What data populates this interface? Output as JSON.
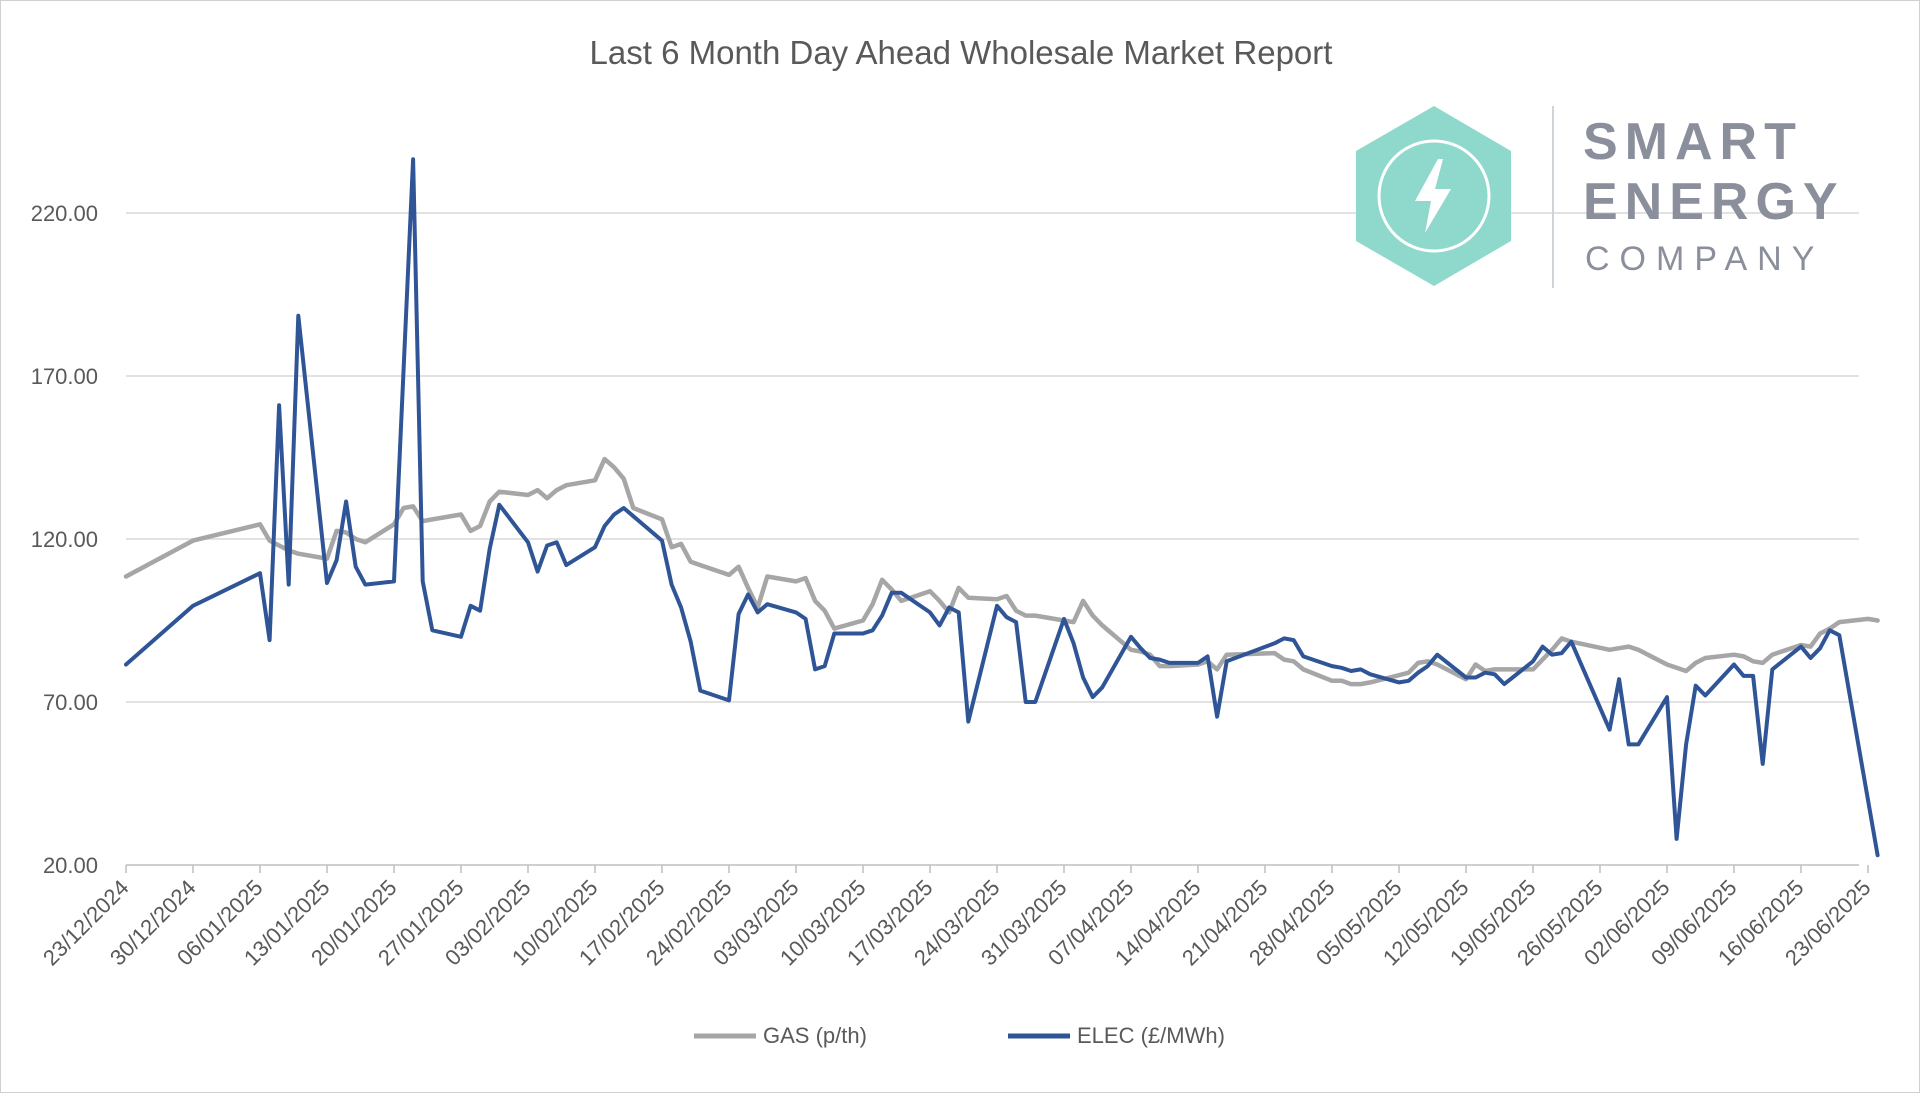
{
  "logo": {
    "line1": "SMART",
    "line2": "ENERGY",
    "line3": "COMPANY",
    "hex_color": "#8fd9cc",
    "text_color": "#8a8f9b"
  },
  "chart_data": {
    "type": "line",
    "title": "Last 6 Month Day Ahead Wholesale Market Report",
    "xlabel": "",
    "ylabel": "",
    "x_range": [
      "2024-12-23",
      "2025-06-24"
    ],
    "ylim": [
      20,
      245
    ],
    "y_ticks": [
      "220.00",
      "170.00",
      "120.00",
      "70.00",
      "20.00"
    ],
    "x_ticks": [
      "23/12/2024",
      "30/12/2024",
      "06/01/2025",
      "13/01/2025",
      "20/01/2025",
      "27/01/2025",
      "03/02/2025",
      "10/02/2025",
      "17/02/2025",
      "24/02/2025",
      "03/03/2025",
      "10/03/2025",
      "17/03/2025",
      "24/03/2025",
      "31/03/2025",
      "07/04/2025",
      "14/04/2025",
      "21/04/2025",
      "28/04/2025",
      "05/05/2025",
      "12/05/2025",
      "19/05/2025",
      "26/05/2025",
      "02/06/2025",
      "09/06/2025",
      "16/06/2025",
      "23/06/2025"
    ],
    "grid": true,
    "legend_position": "bottom",
    "series": [
      {
        "name": "GAS (p/th)",
        "color": "#a6a6a6",
        "points": [
          [
            "2024-12-23",
            108.5
          ],
          [
            "2024-12-30",
            119.5
          ],
          [
            "2025-01-06",
            124.5
          ],
          [
            "2025-01-07",
            119.5
          ],
          [
            "2025-01-08",
            118
          ],
          [
            "2025-01-09",
            116.5
          ],
          [
            "2025-01-10",
            115.5
          ],
          [
            "2025-01-13",
            114
          ],
          [
            "2025-01-14",
            122.5
          ],
          [
            "2025-01-15",
            122
          ],
          [
            "2025-01-16",
            120
          ],
          [
            "2025-01-17",
            119
          ],
          [
            "2025-01-20",
            124.5
          ],
          [
            "2025-01-21",
            129.5
          ],
          [
            "2025-01-22",
            130
          ],
          [
            "2025-01-23",
            125.5
          ],
          [
            "2025-01-24",
            126
          ],
          [
            "2025-01-27",
            127.5
          ],
          [
            "2025-01-28",
            122.5
          ],
          [
            "2025-01-29",
            124
          ],
          [
            "2025-01-30",
            131.5
          ],
          [
            "2025-01-31",
            134.5
          ],
          [
            "2025-02-03",
            133.5
          ],
          [
            "2025-02-04",
            135
          ],
          [
            "2025-02-05",
            132.5
          ],
          [
            "2025-02-06",
            135
          ],
          [
            "2025-02-07",
            136.5
          ],
          [
            "2025-02-10",
            138
          ],
          [
            "2025-02-11",
            144.5
          ],
          [
            "2025-02-12",
            142
          ],
          [
            "2025-02-13",
            138.5
          ],
          [
            "2025-02-14",
            129.5
          ],
          [
            "2025-02-17",
            126
          ],
          [
            "2025-02-18",
            117.5
          ],
          [
            "2025-02-19",
            118.5
          ],
          [
            "2025-02-20",
            113
          ],
          [
            "2025-02-21",
            112
          ],
          [
            "2025-02-24",
            109
          ],
          [
            "2025-02-25",
            111.5
          ],
          [
            "2025-02-26",
            105
          ],
          [
            "2025-02-27",
            99
          ],
          [
            "2025-02-28",
            108.5
          ],
          [
            "2025-03-03",
            107
          ],
          [
            "2025-03-04",
            108
          ],
          [
            "2025-03-05",
            101
          ],
          [
            "2025-03-06",
            98
          ],
          [
            "2025-03-07",
            92.5
          ],
          [
            "2025-03-10",
            95
          ],
          [
            "2025-03-11",
            100
          ],
          [
            "2025-03-12",
            107.5
          ],
          [
            "2025-03-13",
            104.5
          ],
          [
            "2025-03-14",
            101
          ],
          [
            "2025-03-17",
            104
          ],
          [
            "2025-03-18",
            101
          ],
          [
            "2025-03-19",
            97.5
          ],
          [
            "2025-03-20",
            105
          ],
          [
            "2025-03-21",
            102
          ],
          [
            "2025-03-24",
            101.5
          ],
          [
            "2025-03-25",
            102.5
          ],
          [
            "2025-03-26",
            98
          ],
          [
            "2025-03-27",
            96.5
          ],
          [
            "2025-03-28",
            96.5
          ],
          [
            "2025-03-31",
            95
          ],
          [
            "2025-04-01",
            94.5
          ],
          [
            "2025-04-02",
            101
          ],
          [
            "2025-04-03",
            96.5
          ],
          [
            "2025-04-04",
            93.5
          ],
          [
            "2025-04-07",
            86
          ],
          [
            "2025-04-08",
            85.5
          ],
          [
            "2025-04-09",
            84.5
          ],
          [
            "2025-04-10",
            81
          ],
          [
            "2025-04-11",
            81
          ],
          [
            "2025-04-14",
            81.5
          ],
          [
            "2025-04-15",
            82.5
          ],
          [
            "2025-04-16",
            80
          ],
          [
            "2025-04-17",
            84.5
          ],
          [
            "2025-04-22",
            85
          ],
          [
            "2025-04-23",
            83
          ],
          [
            "2025-04-24",
            82.5
          ],
          [
            "2025-04-25",
            80
          ],
          [
            "2025-04-28",
            76.5
          ],
          [
            "2025-04-29",
            76.5
          ],
          [
            "2025-04-30",
            75.5
          ],
          [
            "2025-05-01",
            75.5
          ],
          [
            "2025-05-02",
            76
          ],
          [
            "2025-05-06",
            79
          ],
          [
            "2025-05-07",
            82
          ],
          [
            "2025-05-08",
            82.5
          ],
          [
            "2025-05-09",
            81.5
          ],
          [
            "2025-05-12",
            77
          ],
          [
            "2025-05-13",
            81.5
          ],
          [
            "2025-05-14",
            79.5
          ],
          [
            "2025-05-15",
            80
          ],
          [
            "2025-05-16",
            80
          ],
          [
            "2025-05-19",
            80
          ],
          [
            "2025-05-20",
            83
          ],
          [
            "2025-05-21",
            86
          ],
          [
            "2025-05-22",
            89.5
          ],
          [
            "2025-05-23",
            88.5
          ],
          [
            "2025-05-27",
            86
          ],
          [
            "2025-05-28",
            86.5
          ],
          [
            "2025-05-29",
            87
          ],
          [
            "2025-05-30",
            86
          ],
          [
            "2025-06-02",
            81.5
          ],
          [
            "2025-06-03",
            80.5
          ],
          [
            "2025-06-04",
            79.5
          ],
          [
            "2025-06-05",
            82
          ],
          [
            "2025-06-06",
            83.5
          ],
          [
            "2025-06-09",
            84.5
          ],
          [
            "2025-06-10",
            84
          ],
          [
            "2025-06-11",
            82.5
          ],
          [
            "2025-06-12",
            82
          ],
          [
            "2025-06-13",
            84.5
          ],
          [
            "2025-06-16",
            87.5
          ],
          [
            "2025-06-17",
            87
          ],
          [
            "2025-06-18",
            91
          ],
          [
            "2025-06-19",
            92.5
          ],
          [
            "2025-06-20",
            94.5
          ],
          [
            "2025-06-23",
            95.5
          ],
          [
            "2025-06-24",
            95
          ]
        ]
      },
      {
        "name": "ELEC (£/MWh)",
        "color": "#2f5597",
        "points": [
          [
            "2024-12-23",
            81.5
          ],
          [
            "2024-12-30",
            99.5
          ],
          [
            "2025-01-06",
            109.5
          ],
          [
            "2025-01-07",
            89
          ],
          [
            "2025-01-08",
            161
          ],
          [
            "2025-01-09",
            106
          ],
          [
            "2025-01-10",
            188.5
          ],
          [
            "2025-01-13",
            106.5
          ],
          [
            "2025-01-14",
            113.5
          ],
          [
            "2025-01-15",
            131.5
          ],
          [
            "2025-01-16",
            111.5
          ],
          [
            "2025-01-17",
            106
          ],
          [
            "2025-01-20",
            107
          ],
          [
            "2025-01-22",
            236.5
          ],
          [
            "2025-01-23",
            107
          ],
          [
            "2025-01-24",
            92
          ],
          [
            "2025-01-27",
            90
          ],
          [
            "2025-01-28",
            99.5
          ],
          [
            "2025-01-29",
            98
          ],
          [
            "2025-01-30",
            117
          ],
          [
            "2025-01-31",
            130.5
          ],
          [
            "2025-02-03",
            119
          ],
          [
            "2025-02-04",
            110
          ],
          [
            "2025-02-05",
            118
          ],
          [
            "2025-02-06",
            119
          ],
          [
            "2025-02-07",
            112
          ],
          [
            "2025-02-10",
            117.5
          ],
          [
            "2025-02-11",
            124
          ],
          [
            "2025-02-12",
            127.5
          ],
          [
            "2025-02-13",
            129.5
          ],
          [
            "2025-02-14",
            127
          ],
          [
            "2025-02-17",
            119.5
          ],
          [
            "2025-02-18",
            106
          ],
          [
            "2025-02-19",
            99
          ],
          [
            "2025-02-20",
            88.5
          ],
          [
            "2025-02-21",
            73.5
          ],
          [
            "2025-02-24",
            70.5
          ],
          [
            "2025-02-25",
            97
          ],
          [
            "2025-02-26",
            103
          ],
          [
            "2025-02-27",
            97.5
          ],
          [
            "2025-02-28",
            100
          ],
          [
            "2025-03-03",
            97.5
          ],
          [
            "2025-03-04",
            95.5
          ],
          [
            "2025-03-05",
            80
          ],
          [
            "2025-03-06",
            81
          ],
          [
            "2025-03-07",
            91
          ],
          [
            "2025-03-10",
            91
          ],
          [
            "2025-03-11",
            92
          ],
          [
            "2025-03-12",
            96.5
          ],
          [
            "2025-03-13",
            103.5
          ],
          [
            "2025-03-14",
            103.5
          ],
          [
            "2025-03-17",
            97.5
          ],
          [
            "2025-03-18",
            93.5
          ],
          [
            "2025-03-19",
            99
          ],
          [
            "2025-03-20",
            97.5
          ],
          [
            "2025-03-21",
            64
          ],
          [
            "2025-03-24",
            99.5
          ],
          [
            "2025-03-25",
            96
          ],
          [
            "2025-03-26",
            94.5
          ],
          [
            "2025-03-27",
            70
          ],
          [
            "2025-03-28",
            70
          ],
          [
            "2025-03-31",
            95.5
          ],
          [
            "2025-04-01",
            88
          ],
          [
            "2025-04-02",
            77.5
          ],
          [
            "2025-04-03",
            71.5
          ],
          [
            "2025-04-04",
            74.5
          ],
          [
            "2025-04-07",
            90
          ],
          [
            "2025-04-08",
            86.5
          ],
          [
            "2025-04-09",
            83.5
          ],
          [
            "2025-04-10",
            83
          ],
          [
            "2025-04-11",
            82
          ],
          [
            "2025-04-14",
            82
          ],
          [
            "2025-04-15",
            84
          ],
          [
            "2025-04-16",
            65.5
          ],
          [
            "2025-04-17",
            82.5
          ],
          [
            "2025-04-22",
            88
          ],
          [
            "2025-04-23",
            89.5
          ],
          [
            "2025-04-24",
            89
          ],
          [
            "2025-04-25",
            84
          ],
          [
            "2025-04-28",
            81
          ],
          [
            "2025-04-29",
            80.5
          ],
          [
            "2025-04-30",
            79.5
          ],
          [
            "2025-05-01",
            80
          ],
          [
            "2025-05-02",
            78.5
          ],
          [
            "2025-05-05",
            76
          ],
          [
            "2025-05-06",
            76.5
          ],
          [
            "2025-05-07",
            79
          ],
          [
            "2025-05-08",
            81
          ],
          [
            "2025-05-09",
            84.5
          ],
          [
            "2025-05-12",
            77.5
          ],
          [
            "2025-05-13",
            77.5
          ],
          [
            "2025-05-14",
            79
          ],
          [
            "2025-05-15",
            78.5
          ],
          [
            "2025-05-16",
            75.5
          ],
          [
            "2025-05-19",
            82.5
          ],
          [
            "2025-05-20",
            87
          ],
          [
            "2025-05-21",
            84.5
          ],
          [
            "2025-05-22",
            85
          ],
          [
            "2025-05-23",
            88.5
          ],
          [
            "2025-05-27",
            61.5
          ],
          [
            "2025-05-28",
            77
          ],
          [
            "2025-05-29",
            57
          ],
          [
            "2025-05-30",
            57
          ],
          [
            "2025-06-02",
            71.5
          ],
          [
            "2025-06-03",
            28
          ],
          [
            "2025-06-04",
            57
          ],
          [
            "2025-06-05",
            75
          ],
          [
            "2025-06-06",
            72
          ],
          [
            "2025-06-09",
            81.5
          ],
          [
            "2025-06-10",
            78
          ],
          [
            "2025-06-11",
            78
          ],
          [
            "2025-06-12",
            51
          ],
          [
            "2025-06-13",
            80
          ],
          [
            "2025-06-16",
            87
          ],
          [
            "2025-06-17",
            83.5
          ],
          [
            "2025-06-18",
            86.5
          ],
          [
            "2025-06-19",
            92
          ],
          [
            "2025-06-20",
            90.5
          ],
          [
            "2025-06-24",
            23
          ]
        ]
      }
    ]
  }
}
